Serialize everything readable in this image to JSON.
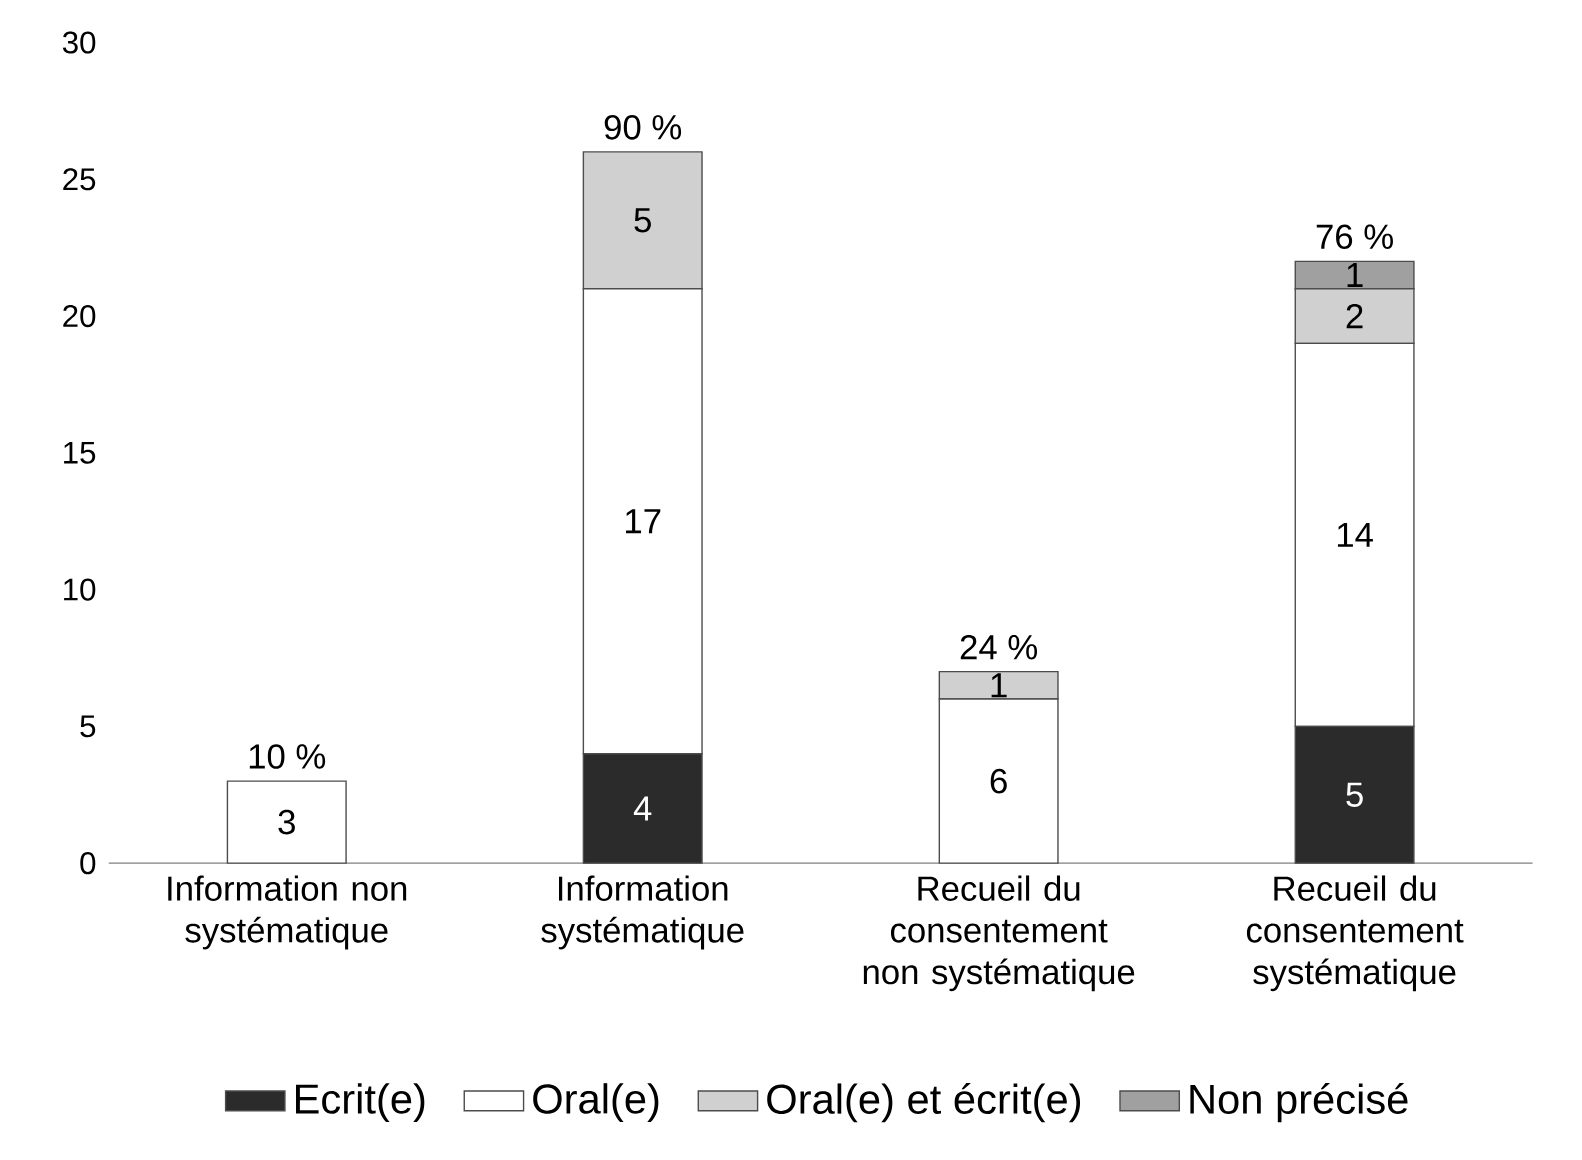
{
  "chart_data": {
    "type": "bar",
    "stacked": true,
    "categories": [
      "Information non systématique",
      "Information systématique",
      "Recueil du consentement non systématique",
      "Recueil du consentement systématique"
    ],
    "series": [
      {
        "name": "Ecrit(e)",
        "color": "#2b2b2b",
        "values": [
          0,
          4,
          0,
          5
        ],
        "value_labels": [
          null,
          "4",
          null,
          "5"
        ]
      },
      {
        "name": "Oral(e)",
        "color": "#ffffff",
        "values": [
          3,
          17,
          6,
          14
        ],
        "value_labels": [
          "3",
          "17",
          "6",
          "14"
        ]
      },
      {
        "name": "Oral(e) et écrit(e)",
        "color": "#d0d0d0",
        "values": [
          0,
          5,
          1,
          2
        ],
        "value_labels": [
          null,
          "5",
          "1",
          "2"
        ]
      },
      {
        "name": "Non précisé",
        "color": "#a0a0a0",
        "values": [
          0,
          0,
          0,
          1
        ],
        "value_labels": [
          null,
          null,
          null,
          "1"
        ]
      }
    ],
    "annotations": [
      "10 %",
      "90 %",
      "24 %",
      "76 %"
    ],
    "ylim": [
      0,
      30
    ],
    "yticks": [
      0,
      5,
      10,
      15,
      20,
      25,
      30
    ],
    "legend": "bottom"
  }
}
